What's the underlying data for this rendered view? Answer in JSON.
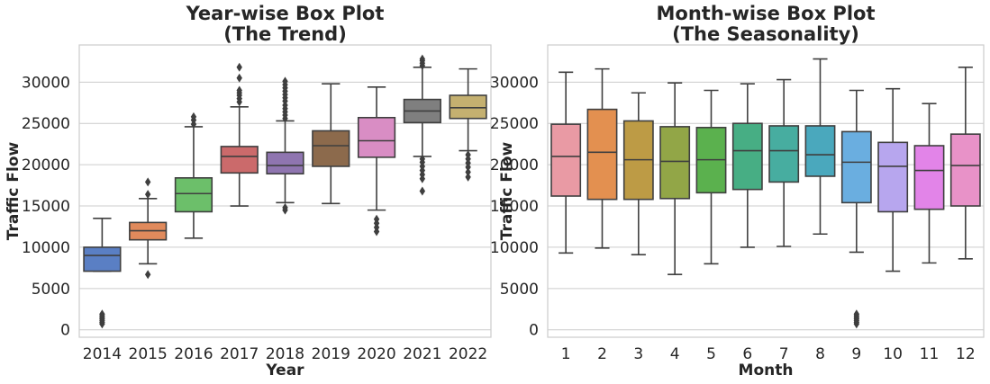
{
  "chart_data": [
    {
      "type": "box",
      "title": "Year-wise Box Plot",
      "subtitle": "(The Trend)",
      "xlabel": "Year",
      "ylabel": "Traffic Flow",
      "ylim": [
        -900,
        34500
      ],
      "yticks": [
        0,
        5000,
        10000,
        15000,
        20000,
        25000,
        30000
      ],
      "grid": true,
      "categories": [
        "2014",
        "2015",
        "2016",
        "2017",
        "2018",
        "2019",
        "2020",
        "2021",
        "2022"
      ],
      "boxes": [
        {
          "color": "#5a7fc4",
          "whislo": 7100,
          "q1": 7100,
          "med": 9000,
          "q3": 10000,
          "whishi": 13500,
          "fliers": [
            700,
            900,
            1100,
            1300,
            1500,
            1700,
            1900
          ]
        },
        {
          "color": "#e08a5c",
          "whislo": 8000,
          "q1": 10900,
          "med": 12000,
          "q3": 13000,
          "whishi": 15900,
          "fliers": [
            6700,
            16400,
            17900
          ]
        },
        {
          "color": "#6cbf6a",
          "whislo": 11100,
          "q1": 14300,
          "med": 16500,
          "q3": 18400,
          "whishi": 24600,
          "fliers": [
            24900,
            25400,
            25800
          ]
        },
        {
          "color": "#cb6a6b",
          "whislo": 15000,
          "q1": 19000,
          "med": 21000,
          "q3": 22200,
          "whishi": 27000,
          "fliers": [
            27600,
            28000,
            28400,
            28700,
            29000,
            30500,
            31800
          ]
        },
        {
          "color": "#8f75b0",
          "whislo": 15400,
          "q1": 18900,
          "med": 19900,
          "q3": 21500,
          "whishi": 25300,
          "fliers": [
            14500,
            14800,
            25600,
            26000,
            26400,
            26800,
            27200,
            27700,
            28100,
            28500,
            28900,
            29300,
            29700,
            30100
          ]
        },
        {
          "color": "#8c6a4c",
          "whislo": 15300,
          "q1": 19800,
          "med": 22300,
          "q3": 24100,
          "whishi": 29800,
          "fliers": []
        },
        {
          "color": "#d98dc4",
          "whislo": 14500,
          "q1": 20900,
          "med": 22900,
          "q3": 25700,
          "whishi": 29400,
          "fliers": [
            11900,
            12400,
            12900,
            13400
          ]
        },
        {
          "color": "#7f7f7f",
          "whislo": 21000,
          "q1": 25100,
          "med": 26500,
          "q3": 27900,
          "whishi": 31800,
          "fliers": [
            16800,
            18300,
            18800,
            19300,
            19800,
            20300,
            20700,
            32000,
            32300,
            32600,
            32800
          ]
        },
        {
          "color": "#c4b070",
          "whislo": 21700,
          "q1": 25600,
          "med": 26900,
          "q3": 28400,
          "whishi": 31600,
          "fliers": [
            18500,
            19100,
            19700,
            20200,
            20700,
            21200
          ]
        }
      ]
    },
    {
      "type": "box",
      "title": "Month-wise Box Plot",
      "subtitle": "(The Seasonality)",
      "xlabel": "Month",
      "ylabel": "Traffic Flow",
      "ylim": [
        -900,
        34500
      ],
      "yticks": [
        0,
        5000,
        10000,
        15000,
        20000,
        25000,
        30000
      ],
      "grid": true,
      "categories": [
        "1",
        "2",
        "3",
        "4",
        "5",
        "6",
        "7",
        "8",
        "9",
        "10",
        "11",
        "12"
      ],
      "boxes": [
        {
          "color": "#e99aa4",
          "whislo": 9300,
          "q1": 16200,
          "med": 21000,
          "q3": 24900,
          "whishi": 31200,
          "fliers": []
        },
        {
          "color": "#e39050",
          "whislo": 9900,
          "q1": 15800,
          "med": 21500,
          "q3": 26700,
          "whishi": 31600,
          "fliers": []
        },
        {
          "color": "#bd9b45",
          "whislo": 9100,
          "q1": 15800,
          "med": 20600,
          "q3": 25300,
          "whishi": 28700,
          "fliers": []
        },
        {
          "color": "#92a647",
          "whislo": 6700,
          "q1": 15900,
          "med": 20400,
          "q3": 24600,
          "whishi": 29900,
          "fliers": []
        },
        {
          "color": "#5bb14e",
          "whislo": 8000,
          "q1": 16600,
          "med": 20600,
          "q3": 24500,
          "whishi": 29000,
          "fliers": []
        },
        {
          "color": "#47ae84",
          "whislo": 10000,
          "q1": 17000,
          "med": 21700,
          "q3": 25000,
          "whishi": 29800,
          "fliers": []
        },
        {
          "color": "#47ada0",
          "whislo": 10100,
          "q1": 17900,
          "med": 21700,
          "q3": 24700,
          "whishi": 30300,
          "fliers": []
        },
        {
          "color": "#4aa8bd",
          "whislo": 11600,
          "q1": 18600,
          "med": 21200,
          "q3": 24700,
          "whishi": 32800,
          "fliers": []
        },
        {
          "color": "#6aaee0",
          "whislo": 9400,
          "q1": 15400,
          "med": 20300,
          "q3": 24000,
          "whishi": 29000,
          "fliers": [
            700,
            900,
            1100,
            1300,
            1500,
            1700,
            1900
          ]
        },
        {
          "color": "#b7a6ee",
          "whislo": 7100,
          "q1": 14300,
          "med": 19800,
          "q3": 22700,
          "whishi": 29200,
          "fliers": []
        },
        {
          "color": "#e284e8",
          "whislo": 8100,
          "q1": 14600,
          "med": 19300,
          "q3": 22300,
          "whishi": 27400,
          "fliers": []
        },
        {
          "color": "#e892c8",
          "whislo": 8600,
          "q1": 15000,
          "med": 19900,
          "q3": 23700,
          "whishi": 31800,
          "fliers": []
        }
      ]
    }
  ]
}
